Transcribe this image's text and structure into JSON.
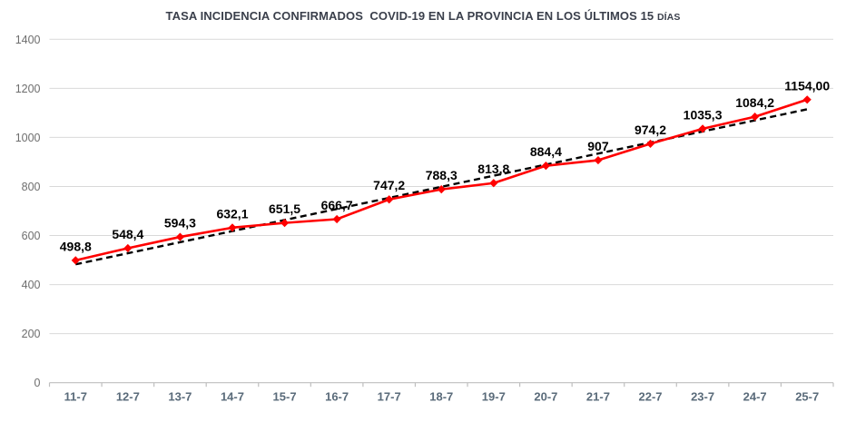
{
  "chart_data": {
    "type": "line",
    "title": "TASA INCIDENCIA CONFIRMADOS  COVID-19 EN LA PROVINCIA EN LOS ÚLTIMOS 15 ",
    "title_suffix": "DÍAS",
    "categories": [
      "11-7",
      "12-7",
      "13-7",
      "14-7",
      "15-7",
      "16-7",
      "17-7",
      "18-7",
      "19-7",
      "20-7",
      "21-7",
      "22-7",
      "23-7",
      "24-7",
      "25-7"
    ],
    "series": [
      {
        "marker": "diamond",
        "color": "#FF0000",
        "values": [
          498.8,
          548.4,
          594.3,
          632.1,
          651.5,
          666.7,
          747.2,
          788.3,
          813.8,
          884.4,
          907,
          974.2,
          1035.3,
          1084.2,
          1154.0
        ],
        "labels": [
          "498,8",
          "548,4",
          "594,3",
          "632,1",
          "651,5",
          "666,7",
          "747,2",
          "788,3",
          "813,8",
          "884,4",
          "907",
          "974,2",
          "1035,3",
          "1084,2",
          "1154,00"
        ]
      }
    ],
    "trendline": {
      "type": "linear",
      "style": "dashed",
      "color": "#000000"
    },
    "ylim": [
      0,
      1400
    ],
    "yticks": [
      0,
      200,
      400,
      600,
      800,
      1000,
      1200,
      1400
    ],
    "ytick_labels": [
      "0",
      "200",
      "400",
      "600",
      "800",
      "1000",
      "1200",
      "1400"
    ],
    "grid": true,
    "legend": "none",
    "xlabel": "",
    "ylabel": "",
    "colors": {
      "series_line": "#FF0000",
      "trendline": "#000000",
      "gridline": "#D9D9D9",
      "axis_line": "#BFBFBF",
      "title_text": "#3A3F4B",
      "x_tick_labels": "#5A6B7A",
      "y_tick_labels": "#6E6E6E",
      "data_labels": "#000000",
      "background": "#FFFFFF"
    }
  }
}
